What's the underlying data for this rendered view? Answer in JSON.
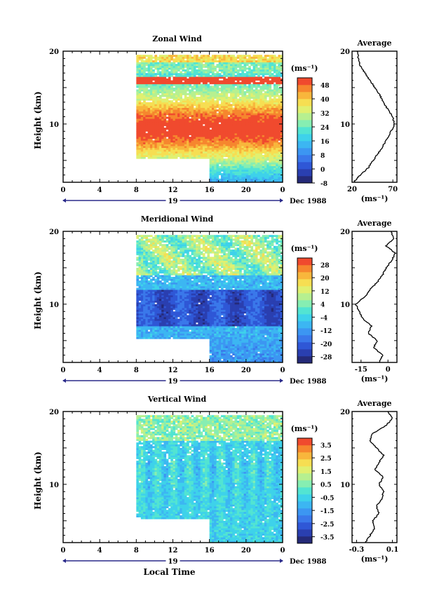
{
  "figure": {
    "x_axis_label": "Local Time",
    "height_axis_label": "Height (km)",
    "date_label": "Dec 1988",
    "day_label": "19",
    "x_ticks": [
      "0",
      "4",
      "8",
      "12",
      "16",
      "20",
      "0"
    ],
    "height_ticks": [
      "10",
      "20"
    ]
  },
  "chart_data": [
    {
      "type": "heatmap",
      "title": "Zonal Wind",
      "unit": "(ms⁻¹)",
      "xlabel": "Local Time",
      "ylabel": "Height (km)",
      "xlim_hours": [
        0,
        24
      ],
      "ylim_km": [
        2,
        20
      ],
      "data_start_hour": 8,
      "colorbar_ticks": [
        "48",
        "40",
        "32",
        "24",
        "16",
        "8",
        "0",
        "-8"
      ],
      "colorbar_range": [
        -8,
        52
      ],
      "field": {
        "kind": "jet",
        "core_km": 9.5,
        "width_km": 5.5,
        "peak": 52,
        "top_value": 20
      },
      "profile": {
        "title": "Average",
        "xlim": [
          20,
          75
        ],
        "xticks": [
          "20",
          "70"
        ],
        "unit": "(ms⁻¹)",
        "heights_km": [
          2,
          2.5,
          3,
          4,
          5,
          6,
          7,
          8,
          9,
          10,
          11,
          12,
          13,
          14,
          15,
          16,
          17,
          18,
          19,
          20
        ],
        "values": [
          22,
          26,
          30,
          40,
          46,
          52,
          58,
          63,
          68,
          72,
          70,
          64,
          58,
          54,
          48,
          42,
          36,
          30,
          28,
          26
        ]
      }
    },
    {
      "type": "heatmap",
      "title": "Meridional Wind",
      "unit": "(ms⁻¹)",
      "xlabel": "Local Time",
      "ylabel": "Height (km)",
      "xlim_hours": [
        0,
        24
      ],
      "ylim_km": [
        2,
        20
      ],
      "data_start_hour": 8,
      "colorbar_ticks": [
        "28",
        "20",
        "12",
        "4",
        "-4",
        "-12",
        "-20",
        "-28"
      ],
      "colorbar_range": [
        -32,
        32
      ],
      "field": {
        "kind": "meridional",
        "low_value": -10,
        "mid_value": -22,
        "mid_km": 9,
        "top_value": 6
      },
      "profile": {
        "title": "Average",
        "xlim": [
          -20,
          5
        ],
        "xticks": [
          "-15",
          "0"
        ],
        "unit": "(ms⁻¹)",
        "heights_km": [
          2,
          3,
          4,
          5,
          6,
          7,
          8,
          9,
          10,
          11,
          12,
          13,
          14,
          15,
          16,
          17,
          18,
          19,
          20
        ],
        "values": [
          -5,
          -3,
          -8,
          -6,
          -11,
          -9,
          -14,
          -16,
          -18,
          -13,
          -10,
          -6,
          -3,
          -1,
          2,
          4,
          -1,
          3,
          2
        ]
      }
    },
    {
      "type": "heatmap",
      "title": "Vertical Wind",
      "unit": "(ms⁻¹)",
      "xlabel": "Local Time",
      "ylabel": "Height (km)",
      "xlim_hours": [
        0,
        24
      ],
      "ylim_km": [
        2,
        20
      ],
      "data_start_hour": 8,
      "colorbar_ticks": [
        "3.5",
        "2.5",
        "1.5",
        "0.5",
        "-0.5",
        "-1.5",
        "-2.5",
        "-3.5"
      ],
      "colorbar_range": [
        -4,
        4
      ],
      "field": {
        "kind": "vertical",
        "base_value": -0.5,
        "top_value": 0.7
      },
      "profile": {
        "title": "Average",
        "xlim": [
          -0.35,
          0.15
        ],
        "xticks": [
          "-0.3",
          "0.1"
        ],
        "unit": "(ms⁻¹)",
        "heights_km": [
          2,
          3,
          4,
          5,
          6,
          7,
          8,
          9,
          10,
          11,
          12,
          13,
          14,
          15,
          16,
          17,
          18,
          19,
          20
        ],
        "values": [
          -0.2,
          -0.15,
          -0.1,
          -0.12,
          -0.05,
          -0.08,
          -0.02,
          0.0,
          -0.05,
          0.0,
          -0.1,
          -0.05,
          0.0,
          -0.08,
          -0.15,
          -0.12,
          0.02,
          0.1,
          0.05
        ]
      }
    }
  ]
}
